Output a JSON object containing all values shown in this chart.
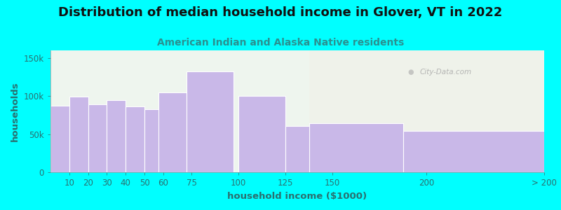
{
  "title": "Distribution of median household income in Glover, VT in 2022",
  "subtitle": "American Indian and Alaska Native residents",
  "xlabel": "household income ($1000)",
  "ylabel": "households",
  "background_color": "#00FFFF",
  "plot_bg_color": "#eef5ee",
  "plot_bg_color_right": "#f0f0f0",
  "bar_color": "#c9b8e8",
  "bar_edge_color": "#ffffff",
  "categories": [
    "10",
    "20",
    "30",
    "40",
    "50",
    "60",
    "75",
    "100",
    "125",
    "150",
    "200",
    "> 200"
  ],
  "values": [
    87000,
    99000,
    89000,
    95000,
    86000,
    83000,
    105000,
    132000,
    100000,
    61000,
    64000,
    54000
  ],
  "yticks": [
    0,
    50000,
    100000,
    150000
  ],
  "ytick_labels": [
    "0",
    "50k",
    "100k",
    "150k"
  ],
  "title_fontsize": 13,
  "subtitle_fontsize": 10,
  "axis_label_fontsize": 9.5,
  "tick_fontsize": 8.5,
  "title_color": "#111111",
  "subtitle_color": "#2a9090",
  "axis_color": "#2a7070",
  "tick_color": "#2a7070",
  "watermark": "City-Data.com",
  "widths": [
    10,
    10,
    10,
    10,
    10,
    10,
    15,
    25,
    25,
    25,
    50,
    75
  ],
  "lefts": [
    5,
    15,
    25,
    35,
    45,
    55,
    65,
    85,
    112.5,
    137.5,
    162.5,
    225
  ],
  "xlim": [
    0,
    262
  ],
  "ylim": [
    0,
    160000
  ],
  "xtick_positions": [
    10,
    20,
    30,
    40,
    50,
    60,
    75,
    100,
    125,
    150,
    200,
    262.5
  ],
  "right_bg_start": 137.5,
  "right_bg_color": "#f0f0e8"
}
